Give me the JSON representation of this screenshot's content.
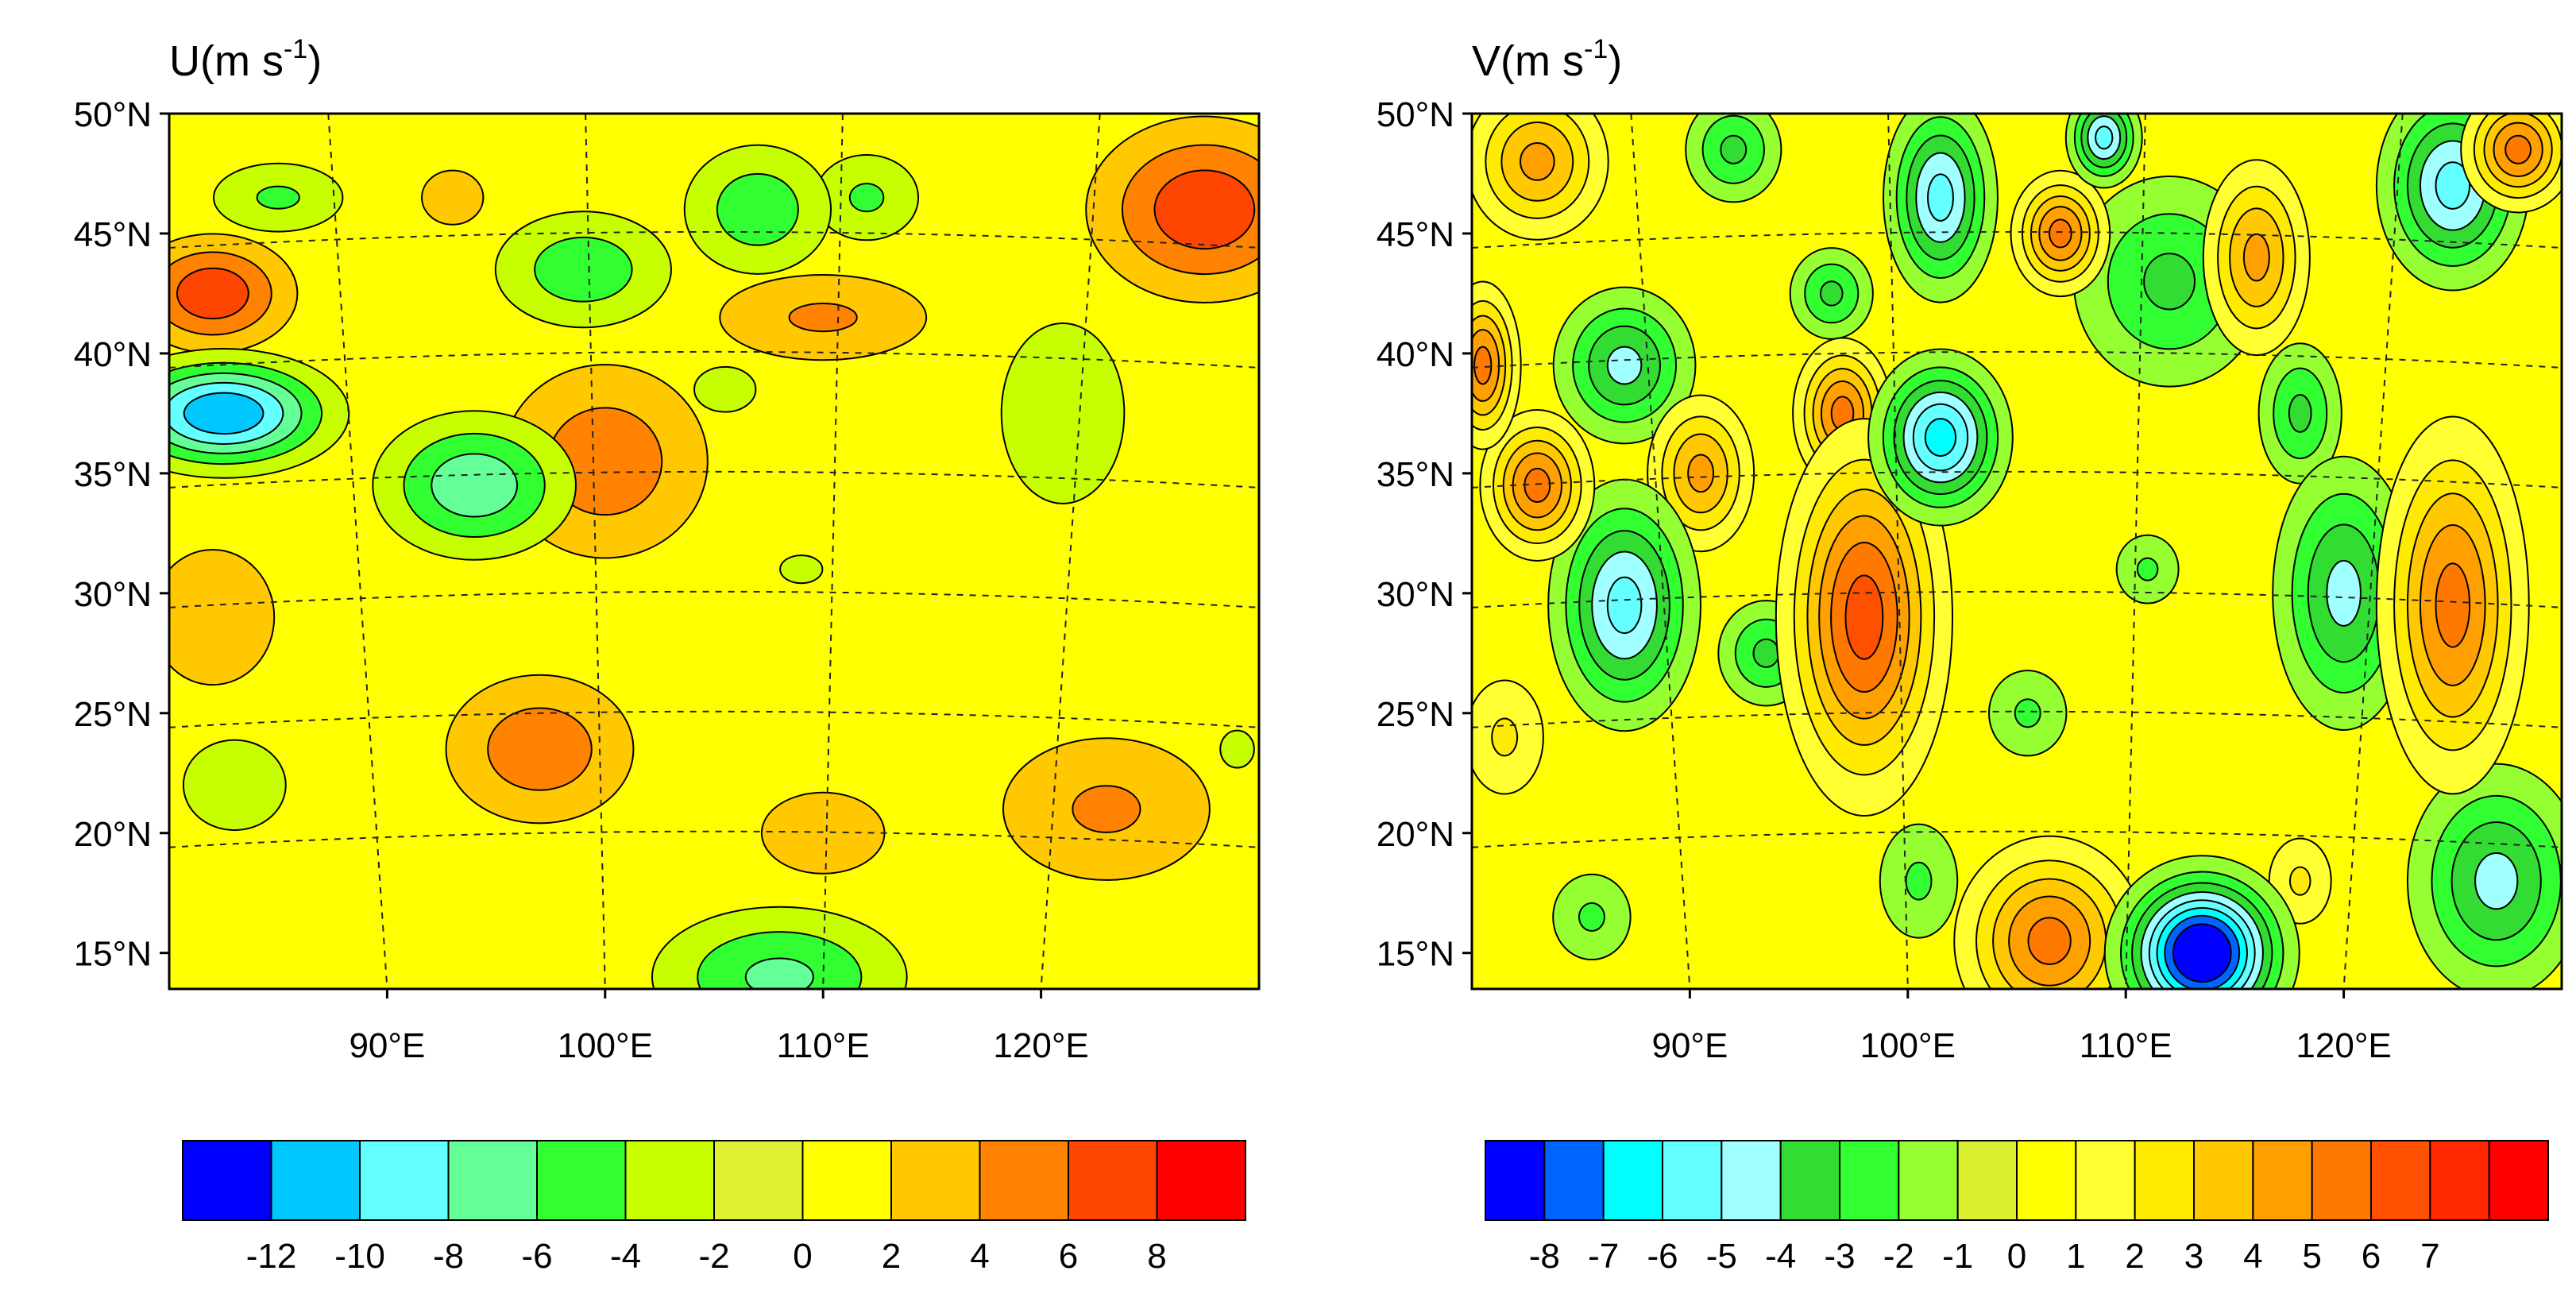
{
  "chart_data": [
    {
      "type": "heatmap",
      "subtype": "filled-contour-map",
      "title_main": "U(m s",
      "title_sup": "-1",
      "title_close": ")",
      "lat_ticks": [
        "50°N",
        "45°N",
        "40°N",
        "35°N",
        "30°N",
        "25°N",
        "20°N",
        "15°N"
      ],
      "lat_values": [
        50,
        45,
        40,
        35,
        30,
        25,
        20,
        15
      ],
      "lon_ticks": [
        "90°E",
        "100°E",
        "110°E",
        "120°E"
      ],
      "lon_values": [
        90,
        100,
        110,
        120
      ],
      "lat_range": [
        13.5,
        50
      ],
      "lon_range": [
        80,
        130
      ],
      "base_color": "#FFFF00",
      "blobs": [
        {
          "lon": 82,
          "lat": 42.5,
          "value": 7,
          "sx": 2.5,
          "sy": 1.6
        },
        {
          "lon": 82.5,
          "lat": 37.5,
          "value": -11,
          "sx": 3.2,
          "sy": 1.5
        },
        {
          "lon": 94,
          "lat": 34.5,
          "value": -7,
          "sx": 3,
          "sy": 2
        },
        {
          "lon": 85,
          "lat": 46.5,
          "value": -4,
          "sx": 2.5,
          "sy": 1.2
        },
        {
          "lon": 100,
          "lat": 35.5,
          "value": 5,
          "sx": 3.5,
          "sy": 3
        },
        {
          "lon": 99,
          "lat": 43.5,
          "value": -5,
          "sx": 3,
          "sy": 1.8
        },
        {
          "lon": 107,
          "lat": 46,
          "value": -5,
          "sx": 2.5,
          "sy": 2
        },
        {
          "lon": 112,
          "lat": 46.5,
          "value": -4,
          "sx": 2,
          "sy": 1.5
        },
        {
          "lon": 110,
          "lat": 41.5,
          "value": 4,
          "sx": 4,
          "sy": 1.5
        },
        {
          "lon": 127.5,
          "lat": 46,
          "value": 7,
          "sx": 3.5,
          "sy": 2.5
        },
        {
          "lon": 121,
          "lat": 37.5,
          "value": -3,
          "sx": 3,
          "sy": 4
        },
        {
          "lon": 97,
          "lat": 23.5,
          "value": 5,
          "sx": 3.2,
          "sy": 2.3
        },
        {
          "lon": 123,
          "lat": 21,
          "value": 4,
          "sx": 4,
          "sy": 2.5
        },
        {
          "lon": 108,
          "lat": 14,
          "value": -6,
          "sx": 4,
          "sy": 2
        },
        {
          "lon": 110,
          "lat": 20,
          "value": 3,
          "sx": 3,
          "sy": 1.8
        },
        {
          "lon": 82,
          "lat": 29,
          "value": 3,
          "sx": 3,
          "sy": 3
        },
        {
          "lon": 83,
          "lat": 22,
          "value": -3,
          "sx": 2.5,
          "sy": 2
        },
        {
          "lon": 109,
          "lat": 31,
          "value": -2,
          "sx": 2.5,
          "sy": 1.5
        },
        {
          "lon": 105.5,
          "lat": 38.5,
          "value": -3,
          "sx": 1.5,
          "sy": 1
        },
        {
          "lon": 93,
          "lat": 46.5,
          "value": 3,
          "sx": 1.5,
          "sy": 1.2
        },
        {
          "lon": 129,
          "lat": 23.5,
          "value": -2,
          "sx": 2,
          "sy": 2
        }
      ],
      "colorbar": {
        "colors": [
          "#0000FF",
          "#00C8FF",
          "#64FFFF",
          "#64FF96",
          "#32FF32",
          "#C8FF00",
          "#E0F032",
          "#FFFF00",
          "#FFC800",
          "#FF8200",
          "#FF4600",
          "#FF0000"
        ],
        "labels": [
          "-12",
          "-10",
          "-8",
          "-6",
          "-4",
          "-2",
          "0",
          "2",
          "4",
          "6",
          "8"
        ],
        "levels": [
          -12,
          -10,
          -8,
          -6,
          -4,
          -2,
          0,
          2,
          4,
          6,
          8
        ]
      }
    },
    {
      "type": "heatmap",
      "subtype": "filled-contour-map",
      "title_main": "V(m s",
      "title_sup": "-1",
      "title_close": ")",
      "lat_ticks": [
        "50°N",
        "45°N",
        "40°N",
        "35°N",
        "30°N",
        "25°N",
        "20°N",
        "15°N"
      ],
      "lat_values": [
        50,
        45,
        40,
        35,
        30,
        25,
        20,
        15
      ],
      "lon_ticks": [
        "90°E",
        "100°E",
        "110°E",
        "120°E"
      ],
      "lon_values": [
        90,
        100,
        110,
        120
      ],
      "lat_range": [
        13.5,
        50
      ],
      "lon_range": [
        80,
        130
      ],
      "base_color": "#FFFF00",
      "blobs": [
        {
          "lon": 98,
          "lat": 29,
          "value": 6,
          "sx": 2.2,
          "sy": 4.5
        },
        {
          "lon": 97,
          "lat": 37.5,
          "value": 5,
          "sx": 1.3,
          "sy": 1.8
        },
        {
          "lon": 101.5,
          "lat": 36.5,
          "value": -6,
          "sx": 1.8,
          "sy": 2
        },
        {
          "lon": 101.5,
          "lat": 46.5,
          "value": -5,
          "sx": 1.5,
          "sy": 2.5
        },
        {
          "lon": 113.5,
          "lat": 15,
          "value": -9,
          "sx": 2.2,
          "sy": 2
        },
        {
          "lon": 106.5,
          "lat": 15.5,
          "value": 5,
          "sx": 2.5,
          "sy": 2.5
        },
        {
          "lon": 118,
          "lat": 18,
          "value": 2,
          "sx": 1.2,
          "sy": 1.5
        },
        {
          "lon": 125,
          "lat": 29.5,
          "value": 5,
          "sx": 2,
          "sy": 4.5
        },
        {
          "lon": 120,
          "lat": 30,
          "value": -4,
          "sx": 2,
          "sy": 3.5
        },
        {
          "lon": 125,
          "lat": 47,
          "value": -5,
          "sx": 2,
          "sy": 2.5
        },
        {
          "lon": 128,
          "lat": 48.5,
          "value": 5,
          "sx": 1.5,
          "sy": 1.5
        },
        {
          "lon": 116,
          "lat": 44,
          "value": 4,
          "sx": 1.5,
          "sy": 2.5
        },
        {
          "lon": 112,
          "lat": 43,
          "value": -3,
          "sx": 3,
          "sy": 3
        },
        {
          "lon": 107,
          "lat": 45,
          "value": 5,
          "sx": 1.3,
          "sy": 1.5
        },
        {
          "lon": 109,
          "lat": 49,
          "value": -5,
          "sx": 1,
          "sy": 1.2
        },
        {
          "lon": 87,
          "lat": 29.5,
          "value": -5,
          "sx": 2,
          "sy": 3
        },
        {
          "lon": 87,
          "lat": 39.5,
          "value": -4,
          "sx": 2,
          "sy": 2
        },
        {
          "lon": 83,
          "lat": 34.5,
          "value": 5,
          "sx": 1.5,
          "sy": 1.8
        },
        {
          "lon": 90.5,
          "lat": 35,
          "value": 4,
          "sx": 1.5,
          "sy": 2
        },
        {
          "lon": 83,
          "lat": 48,
          "value": 4,
          "sx": 2,
          "sy": 2
        },
        {
          "lon": 92,
          "lat": 48.5,
          "value": -3,
          "sx": 1.5,
          "sy": 1.5
        },
        {
          "lon": 96.5,
          "lat": 42.5,
          "value": -3,
          "sx": 1.3,
          "sy": 1.3
        },
        {
          "lon": 127,
          "lat": 18,
          "value": -4,
          "sx": 2.5,
          "sy": 3
        },
        {
          "lon": 118,
          "lat": 37.5,
          "value": -3,
          "sx": 1.3,
          "sy": 2
        },
        {
          "lon": 93.5,
          "lat": 27.5,
          "value": -3,
          "sx": 1.5,
          "sy": 1.5
        },
        {
          "lon": 105.5,
          "lat": 25,
          "value": -2,
          "sx": 1.5,
          "sy": 1.5
        },
        {
          "lon": 111,
          "lat": 31,
          "value": -2,
          "sx": 1.2,
          "sy": 1.2
        },
        {
          "lon": 100.5,
          "lat": 18,
          "value": -2,
          "sx": 1.5,
          "sy": 2
        },
        {
          "lon": 85.5,
          "lat": 16.5,
          "value": -2,
          "sx": 1.5,
          "sy": 1.5
        },
        {
          "lon": 80.5,
          "lat": 39.5,
          "value": 5,
          "sx": 1,
          "sy": 2
        },
        {
          "lon": 81.5,
          "lat": 24,
          "value": 2,
          "sx": 1.5,
          "sy": 2
        }
      ],
      "colorbar": {
        "colors": [
          "#0000FF",
          "#0064FF",
          "#00FFFF",
          "#64FFFF",
          "#A0FFFF",
          "#32DC32",
          "#32FF32",
          "#96FF32",
          "#DCF032",
          "#FFFF00",
          "#FFFF32",
          "#FFEB00",
          "#FFC800",
          "#FFA000",
          "#FF7800",
          "#FF5000",
          "#FF2800",
          "#FF0000"
        ],
        "labels": [
          "-8",
          "-7",
          "-6",
          "-5",
          "-4",
          "-3",
          "-2",
          "-1",
          "0",
          "1",
          "2",
          "3",
          "4",
          "5",
          "6",
          "7"
        ],
        "levels": [
          -8,
          -7,
          -6,
          -5,
          -4,
          -3,
          -2,
          -1,
          0,
          1,
          2,
          3,
          4,
          5,
          6,
          7
        ]
      }
    }
  ]
}
